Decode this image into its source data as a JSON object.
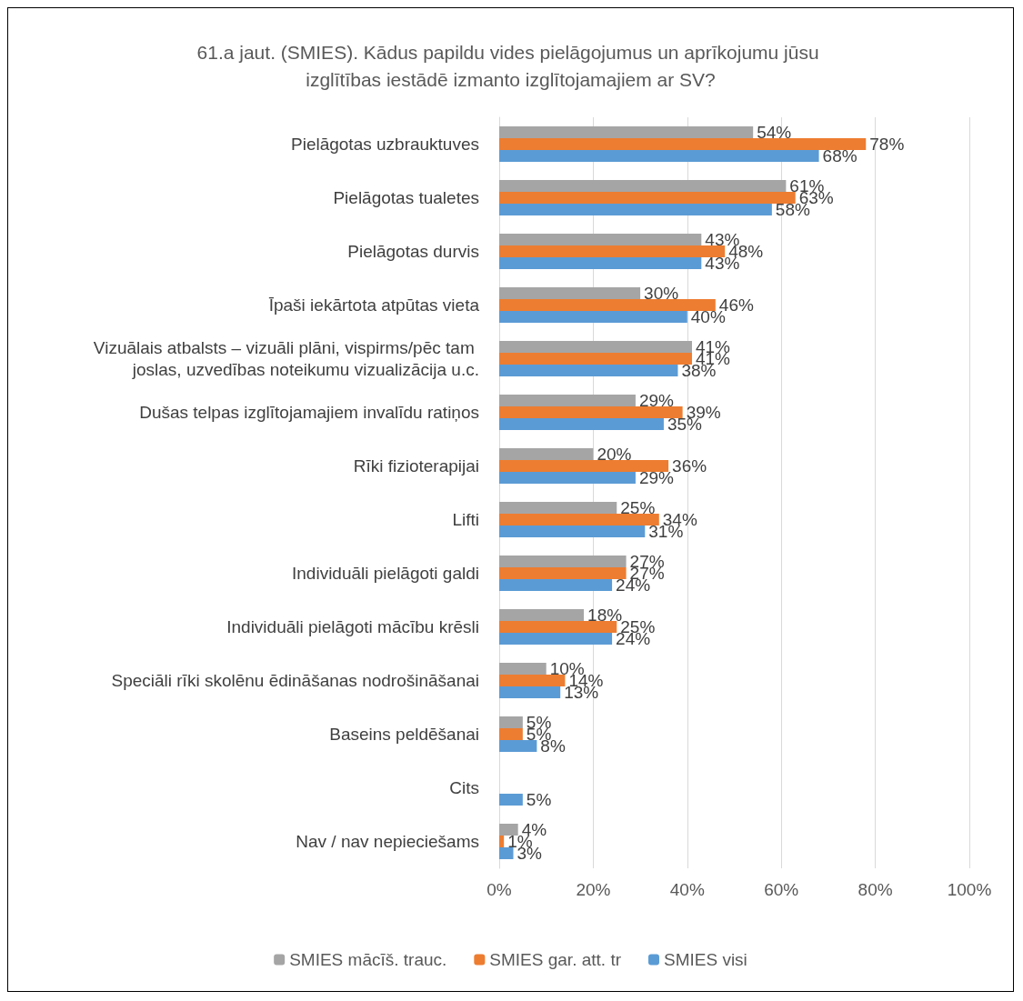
{
  "chart_data": {
    "type": "bar",
    "orientation": "horizontal",
    "title": "61.a jaut. (SMIES). Kādus papildu vides pielāgojumus un aprīkojumu jūsu izglītības iestādē izmanto izglītojamajiem ar SV?",
    "categories": [
      "Pielāgotas uzbrauktuves",
      "Pielāgotas tualetes",
      "Pielāgotas durvis",
      "Īpaši iekārtota atpūtas vieta",
      "Vizuālais atbalsts – vizuāli plāni, vispirms/pēc tam joslas, uzvedības noteikumu vizualizācija u.c.",
      "Dušas telpas izglītojamajiem invalīdu ratiņos",
      "Rīki fizioterapijai",
      "Lifti",
      "Individuāli pielāgoti galdi",
      "Individuāli pielāgoti mācību krēsli",
      "Speciāli rīki skolēnu ēdināšanas nodrošināšanai",
      "Baseins peldēšanai",
      "Cits",
      "Nav / nav nepieciešams"
    ],
    "series": [
      {
        "name": "SMIES mācīš. trauc.",
        "color": "#a5a5a5",
        "values": [
          54,
          61,
          43,
          30,
          41,
          29,
          20,
          25,
          27,
          18,
          10,
          5,
          null,
          4
        ],
        "value_labels": [
          "54%",
          "61%",
          "43%",
          "30%",
          "41%",
          "29%",
          "20%",
          "25%",
          "27%",
          "18%",
          "10%",
          "5%",
          null,
          "4%"
        ]
      },
      {
        "name": "SMIES gar. att. tr",
        "color": "#ed7d31",
        "values": [
          78,
          63,
          48,
          46,
          41,
          39,
          36,
          34,
          27,
          25,
          14,
          5,
          null,
          1
        ],
        "value_labels": [
          "78%",
          "63%",
          "48%",
          "46%",
          "41%",
          "39%",
          "36%",
          "34%",
          "27%",
          "25%",
          "14%",
          "5%",
          null,
          "1%"
        ]
      },
      {
        "name": "SMIES visi",
        "color": "#5b9bd5",
        "values": [
          68,
          58,
          43,
          40,
          38,
          35,
          29,
          31,
          24,
          24,
          13,
          8,
          5,
          3
        ],
        "value_labels": [
          "68%",
          "58%",
          "43%",
          "40%",
          "38%",
          "35%",
          "29%",
          "31%",
          "24%",
          "24%",
          "13%",
          "8%",
          "5%",
          "3%"
        ]
      }
    ],
    "xlim": [
      0,
      100
    ],
    "xticks": [
      {
        "value": 0,
        "label": "0%"
      },
      {
        "value": 20,
        "label": "20%"
      },
      {
        "value": 40,
        "label": "40%"
      },
      {
        "value": 60,
        "label": "60%"
      },
      {
        "value": 80,
        "label": "80%"
      },
      {
        "value": 100,
        "label": "100%"
      }
    ],
    "grid": "x",
    "legend": "bottom"
  }
}
